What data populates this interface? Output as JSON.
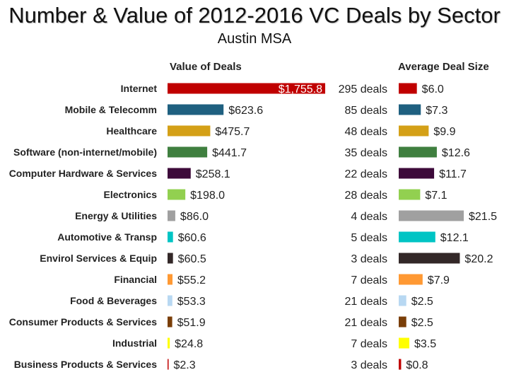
{
  "header": {
    "title": "Number & Value of 2012-2016 VC Deals by Sector",
    "subtitle": "Austin MSA",
    "value_header": "Value of Deals",
    "avg_header": "Average Deal Size"
  },
  "chart_data": {
    "type": "bar",
    "title": "Number & Value of 2012-2016 VC Deals by Sector",
    "subtitle": "Austin MSA",
    "categories": [
      "Internet",
      "Mobile & Telecomm",
      "Healthcare",
      "Software (non-internet/mobile)",
      "Computer Hardware & Services",
      "Electronics",
      "Energy & Utilities",
      "Automotive & Transp",
      "Envirol Services & Equip",
      "Financial",
      "Food & Beverages",
      "Consumer Products & Services",
      "Industrial",
      "Business Products & Services"
    ],
    "series": [
      {
        "name": "Value of Deals",
        "values": [
          1755.8,
          623.6,
          475.7,
          441.7,
          258.1,
          198.0,
          86.0,
          60.6,
          60.5,
          55.2,
          53.3,
          51.9,
          24.8,
          2.3
        ],
        "labels": [
          "$1,755.8",
          "$623.6",
          "$475.7",
          "$441.7",
          "$258.1",
          "$198.0",
          "$86.0",
          "$60.6",
          "$60.5",
          "$55.2",
          "$53.3",
          "$51.9",
          "$24.8",
          "$2.3"
        ]
      },
      {
        "name": "Average Deal Size",
        "values": [
          6.0,
          7.3,
          9.9,
          12.6,
          11.7,
          7.1,
          21.5,
          12.1,
          20.2,
          7.9,
          2.5,
          2.5,
          3.5,
          0.8
        ],
        "labels": [
          "$6.0",
          "$7.3",
          "$9.9",
          "$12.6",
          "$11.7",
          "$7.1",
          "$21.5",
          "$12.1",
          "$20.2",
          "$7.9",
          "$2.5",
          "$2.5",
          "$3.5",
          "$0.8"
        ]
      }
    ],
    "deal_counts": [
      "295 deals",
      "85 deals",
      "48 deals",
      "35 deals",
      "22 deals",
      "28 deals",
      "4 deals",
      "5 deals",
      "3 deals",
      "7 deals",
      "21 deals",
      "21 deals",
      "7 deals",
      "3 deals"
    ],
    "colors": [
      "#c00000",
      "#1f6080",
      "#d4a017",
      "#3f7f3f",
      "#3d0a3a",
      "#92d050",
      "#a0a0a0",
      "#00c4c4",
      "#332828",
      "#ff9933",
      "#b8d8f2",
      "#7a3e08",
      "#ffff00",
      "#c00000"
    ],
    "value_max": 1755.8,
    "avg_max": 21.5,
    "legend": "none",
    "grid": false
  }
}
